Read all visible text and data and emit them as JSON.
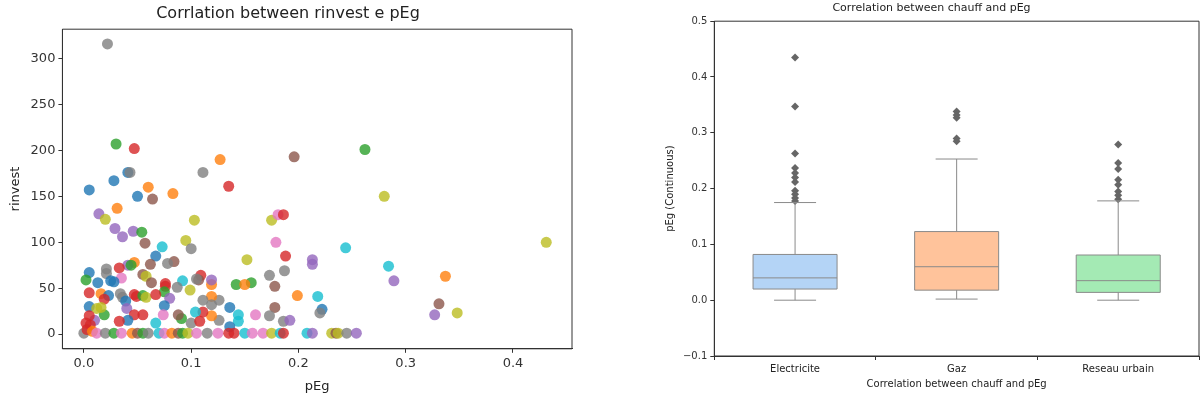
{
  "chart_data": [
    {
      "type": "scatter",
      "title": "Corrlation between rinvest e pEg",
      "xlabel": "pEg",
      "ylabel": "rinvest",
      "marker": "circle",
      "grid": false,
      "legend": false,
      "xlim": [
        -0.02,
        0.455
      ],
      "xticks": [
        {
          "value": 0,
          "label": "0.0"
        },
        0.1,
        0.2,
        0.3,
        0.4
      ],
      "ylim": [
        -16,
        332
      ],
      "yticks": [
        0,
        50,
        100,
        150,
        200,
        250,
        300
      ],
      "series": [
        {
          "x": [
            0.022,
            0.03,
            0.047,
            0.005,
            0.028,
            0.041,
            0.043,
            0.05,
            0.06,
            0.064,
            0.083,
            0.031,
            0.014,
            0.02,
            0.029,
            0.036,
            0.046,
            0.054,
            0.057,
            0.073,
            0.067,
            0.095,
            0.1,
            0.103,
            0.111,
            0.127,
            0.135,
            0.196,
            0.175,
            0.181,
            0.186,
            0.179,
            0.188,
            0.152,
            0.187,
            0.173,
            0.178,
            0.199,
            0.156,
            0.142,
            0.15,
            0.178,
            0.173,
            0.186,
            0.192,
            0.16,
            0.144,
            0.144,
            0.136,
            0.136,
            0.126,
            0.126,
            0.119,
            0.119,
            0.119,
            0.119,
            0.109,
            0.107,
            0.105,
            0.099,
            0.092,
            0.087,
            0.084,
            0.078,
            0.062,
            0.047,
            0.041,
            0.044,
            0.033,
            0.035,
            0.021,
            0.021,
            0.005,
            0.002,
            0.013,
            0.025,
            0.028,
            0.055,
            0.058,
            0.063,
            0.076,
            0.076,
            0.075,
            0.005,
            0.047,
            0.049,
            0.055,
            0.058,
            0.067,
            0.08,
            0.075,
            0.016,
            0.023,
            0.034,
            0.036,
            0.039,
            0.04,
            0.019,
            0.005,
            0.119,
            0.111,
            0.111,
            0.104,
            0.1,
            0.108,
            0.091,
            0.088,
            0.074,
            0.067,
            0.055,
            0.047,
            0.041,
            0.033,
            0.019,
            0.012,
            0.016,
            0.01,
            0.262,
            0.28,
            0.431,
            0.244,
            0.213,
            0.213,
            0.284,
            0.289,
            0.337,
            0.218,
            0.222,
            0.22,
            0.331,
            0.327,
            0.348,
            0.0,
            0.003,
            0.006,
            0.008,
            0.012,
            0.02,
            0.028,
            0.035,
            0.045,
            0.05,
            0.055,
            0.06,
            0.07,
            0.075,
            0.082,
            0.088,
            0.092,
            0.097,
            0.105,
            0.115,
            0.125,
            0.135,
            0.14,
            0.15,
            0.157,
            0.167,
            0.175,
            0.183,
            0.186,
            0.208,
            0.213,
            0.231,
            0.235,
            0.237,
            0.245,
            0.254,
            0.005,
            0.002
          ],
          "values": [
            316,
            207,
            202,
            157,
            167,
            176,
            176,
            150,
            160,
            147,
            153,
            137,
            131,
            125,
            115,
            106,
            112,
            111,
            99,
            95,
            85,
            102,
            93,
            124,
            176,
            190,
            161,
            193,
            124,
            130,
            130,
            100,
            85,
            81,
            69,
            64,
            52,
            42,
            56,
            54,
            54,
            29,
            20,
            14,
            15,
            21,
            21,
            14,
            29,
            8,
            15,
            37,
            41,
            54,
            59,
            20,
            64,
            59,
            60,
            48,
            58,
            51,
            79,
            77,
            76,
            78,
            75,
            75,
            72,
            61,
            71,
            66,
            67,
            59,
            56,
            58,
            57,
            65,
            63,
            56,
            55,
            52,
            46,
            45,
            43,
            41,
            42,
            40,
            43,
            39,
            31,
            44,
            42,
            44,
            40,
            36,
            28,
            38,
            30,
            32,
            37,
            24,
            24,
            12,
            14,
            17,
            21,
            21,
            12,
            21,
            21,
            15,
            14,
            21,
            28,
            29,
            15,
            201,
            150,
            100,
            94,
            81,
            76,
            74,
            58,
            63,
            41,
            27,
            23,
            33,
            21,
            23,
            1,
            5,
            10,
            3,
            1,
            1,
            1,
            1,
            1,
            1,
            1,
            1,
            1,
            1,
            1,
            1,
            1,
            1,
            1,
            1,
            1,
            1,
            1,
            1,
            1,
            1,
            1,
            1,
            1,
            1,
            1,
            1,
            1,
            1,
            1,
            1,
            20,
            12
          ],
          "colors": [
            "#7f7f7f",
            "#2ca02c",
            "#d62728",
            "#1f77b4",
            "#1f77b4",
            "#1f77b4",
            "#7f7f7f",
            "#1f77b4",
            "#ff7f0e",
            "#8c564b",
            "#ff7f0e",
            "#ff7f0e",
            "#9467bd",
            "#bcbd22",
            "#9467bd",
            "#9467bd",
            "#9467bd",
            "#2ca02c",
            "#8c564b",
            "#17becf",
            "#1f77b4",
            "#bcbd22",
            "#7f7f7f",
            "#bcbd22",
            "#7f7f7f",
            "#ff7f0e",
            "#d62728",
            "#8c564b",
            "#bcbd22",
            "#e377c2",
            "#d62728",
            "#e377c2",
            "#d62728",
            "#bcbd22",
            "#7f7f7f",
            "#7f7f7f",
            "#8c564b",
            "#ff7f0e",
            "#2ca02c",
            "#2ca02c",
            "#ff7f0e",
            "#8c564b",
            "#7f7f7f",
            "#7f7f7f",
            "#9467bd",
            "#e377c2",
            "#17becf",
            "#17becf",
            "#1f77b4",
            "#1f77b4",
            "#7f7f7f",
            "#7f7f7f",
            "#ff7f0e",
            "#ff7f0e",
            "#9467bd",
            "#ff7f0e",
            "#d62728",
            "#8c564b",
            "#7f7f7f",
            "#bcbd22",
            "#17becf",
            "#7f7f7f",
            "#8c564b",
            "#7f7f7f",
            "#8c564b",
            "#ff7f0e",
            "#9467bd",
            "#2ca02c",
            "#d62728",
            "#e377c2",
            "#7f7f7f",
            "#7f7f7f",
            "#1f77b4",
            "#2ca02c",
            "#1f77b4",
            "#1f77b4",
            "#1f77b4",
            "#8c564b",
            "#bcbd22",
            "#8c564b",
            "#d62728",
            "#d62728",
            "#2ca02c",
            "#d62728",
            "#d62728",
            "#d62728",
            "#2ca02c",
            "#bcbd22",
            "#d62728",
            "#9467bd",
            "#1f77b4",
            "#ff7f0e",
            "#1f77b4",
            "#7f7f7f",
            "#7f7f7f",
            "#1f77b4",
            "#9467bd",
            "#d62728",
            "#1f77b4",
            "#7f7f7f",
            "#7f7f7f",
            "#d62728",
            "#17becf",
            "#7f7f7f",
            "#d62728",
            "#2ca02c",
            "#8c564b",
            "#e377c2",
            "#17becf",
            "#d62728",
            "#d62728",
            "#1f77b4",
            "#d62728",
            "#2ca02c",
            "#bcbd22",
            "#bcbd22",
            "#9467bd",
            "#2ca02c",
            "#bcbd22",
            "#bcbd22",
            "#17becf",
            "#9467bd",
            "#9467bd",
            "#17becf",
            "#9467bd",
            "#ff7f0e",
            "#17becf",
            "#1f77b4",
            "#7f7f7f",
            "#8c564b",
            "#9467bd",
            "#bcbd22",
            "#7f7f7f",
            "#d62728",
            "#d62728",
            "#ff7f0e",
            "#e377c2",
            "#7f7f7f",
            "#2ca02c",
            "#e377c2",
            "#ff7f0e",
            "#8c564b",
            "#2ca02c",
            "#7f7f7f",
            "#17becf",
            "#e377c2",
            "#ff7f0e",
            "#8c564b",
            "#2ca02c",
            "#bcbd22",
            "#e377c2",
            "#7f7f7f",
            "#e377c2",
            "#d62728",
            "#d62728",
            "#17becf",
            "#e377c2",
            "#e377c2",
            "#bcbd22",
            "#17becf",
            "#d62728",
            "#17becf",
            "#9467bd",
            "#bcbd22",
            "#8c564b",
            "#bcbd22",
            "#7f7f7f",
            "#9467bd",
            "#d62728",
            "#d62728"
          ]
        }
      ]
    },
    {
      "type": "box",
      "title": "Correlation between chauff and pEg",
      "xlabel": "Correlation between chauff and pEg",
      "ylabel": "pEg (Continuous)",
      "marker": "diamond",
      "grid": false,
      "legend": false,
      "categories": [
        "Electricite",
        "Gaz",
        "Reseau urbain"
      ],
      "colors": [
        "#a1c9f4",
        "#ffb482",
        "#8de5a1"
      ],
      "ylim": [
        -0.1,
        0.5
      ],
      "yticks": [
        {
          "value": -0.1,
          "label": "−0.1"
        },
        {
          "value": 0,
          "label": "0.0"
        },
        0.1,
        0.2,
        0.3,
        0.4,
        0.5
      ],
      "boxes": [
        {
          "low": 0,
          "q1": 0.02,
          "median": 0.04,
          "q3": 0.082,
          "high": 0.175,
          "outliers": [
            0.435,
            0.347,
            0.263,
            0.237,
            0.228,
            0.22,
            0.212,
            0.196,
            0.19,
            0.183,
            0.178
          ]
        },
        {
          "low": 0.002,
          "q1": 0.018,
          "median": 0.06,
          "q3": 0.123,
          "high": 0.253,
          "outliers": [
            0.338,
            0.332,
            0.327,
            0.29,
            0.285
          ]
        },
        {
          "low": 0,
          "q1": 0.014,
          "median": 0.035,
          "q3": 0.081,
          "high": 0.178,
          "outliers": [
            0.279,
            0.246,
            0.235,
            0.216,
            0.207,
            0.195,
            0.188,
            0.181
          ]
        }
      ]
    }
  ]
}
